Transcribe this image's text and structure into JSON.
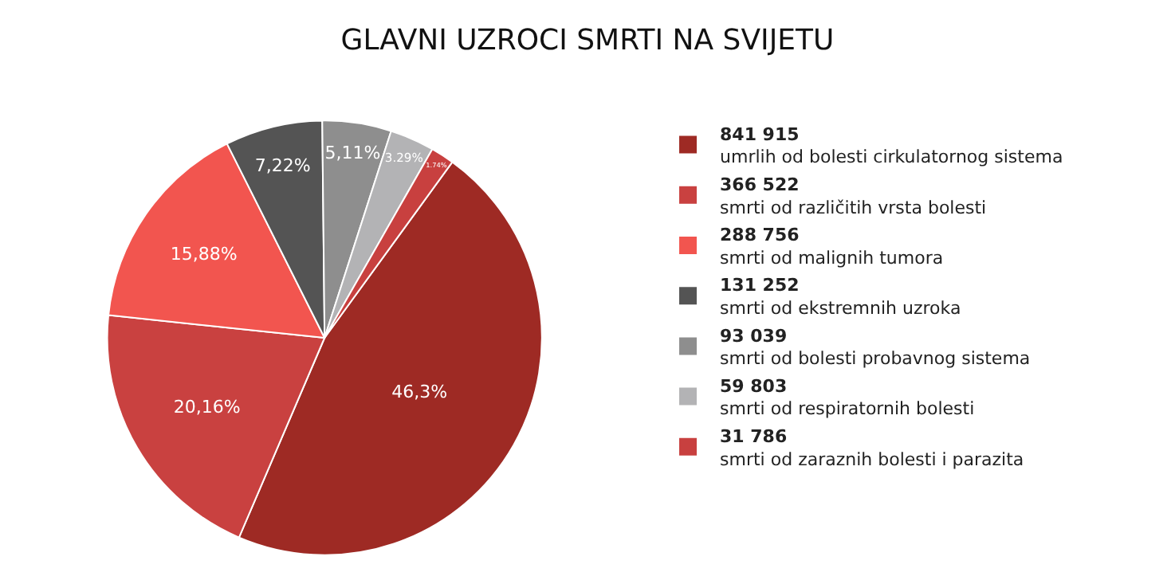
{
  "chart_data": {
    "type": "pie",
    "title": "GLAVNI UZROCI SMRTI NA SVIJETU",
    "categories": [
      "841 915\numrlih od bolesti cirkulatornog sistema",
      "366 522\nsmrti od različitih vrsta bolesti",
      "288 756\nsmrti od malignih tumora",
      "131 252\nsmrti od ekstremnih uzroka",
      "93 039\nsmrti od bolesti probavnog sistema",
      "59 803\nsmrti od respiratornih bolesti",
      "31 786\nsmrti od zaraznih bolesti i parazita"
    ],
    "values": [
      46.3,
      20.16,
      15.88,
      7.22,
      5.11,
      3.29,
      1.74
    ],
    "value_labels": [
      "46,3%",
      "20,16%",
      "15,88%",
      "7,22%",
      "5,11%",
      "3.29%",
      "1.74%"
    ],
    "colors": [
      "#9e2a24",
      "#c94140",
      "#f2554f",
      "#545454",
      "#8e8e8e",
      "#b3b3b5",
      "#c8403f"
    ],
    "legend": "right"
  }
}
